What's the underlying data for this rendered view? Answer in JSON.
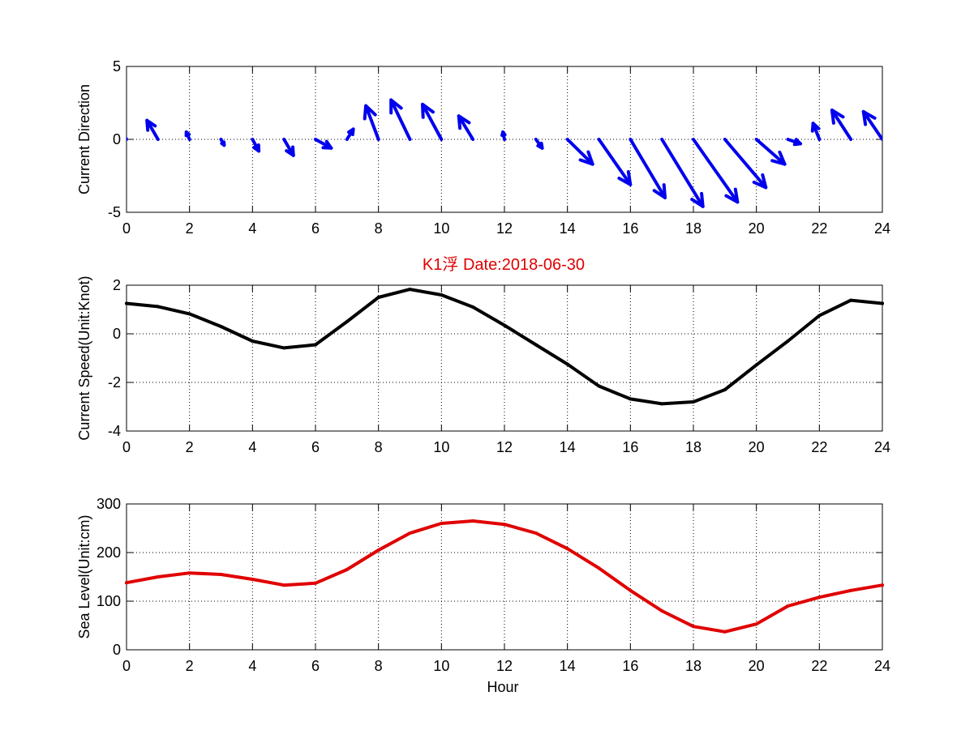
{
  "figure": {
    "title": "K1浮    Date:2018-06-30",
    "title_color": "#e00000",
    "xlabel": "Hour"
  },
  "chart_data": [
    {
      "type": "quiver",
      "ylabel": "Current Direction",
      "xlim": [
        0,
        24
      ],
      "ylim": [
        -5,
        5
      ],
      "xticks": [
        0,
        2,
        4,
        6,
        8,
        10,
        12,
        14,
        16,
        18,
        20,
        22,
        24
      ],
      "yticks": [
        -5,
        0,
        5
      ],
      "grid": true,
      "color": "#0000ee",
      "x": [
        0,
        1,
        2,
        3,
        4,
        5,
        6,
        7,
        8,
        9,
        10,
        11,
        12,
        13,
        14,
        15,
        16,
        17,
        18,
        19,
        20,
        21,
        22,
        23,
        24
      ],
      "u": [
        -0.4,
        -0.35,
        -0.1,
        0.1,
        0.2,
        0.3,
        0.5,
        0.2,
        -0.4,
        -0.6,
        -0.6,
        -0.45,
        -0.05,
        0.2,
        0.8,
        1.0,
        1.1,
        1.3,
        1.4,
        1.3,
        0.9,
        0.4,
        -0.2,
        -0.6,
        -0.6
      ],
      "v": [
        1.7,
        1.3,
        0.5,
        -0.4,
        -0.8,
        -1.1,
        -0.6,
        0.7,
        2.3,
        2.7,
        2.4,
        1.6,
        0.5,
        -0.6,
        -1.7,
        -3.1,
        -4.0,
        -4.6,
        -4.3,
        -3.3,
        -1.7,
        -0.3,
        1.1,
        2.0,
        1.9
      ]
    },
    {
      "type": "line",
      "ylabel": "Current Speed(Unit:Knot)",
      "xlim": [
        0,
        24
      ],
      "ylim": [
        -4,
        2
      ],
      "xticks": [
        0,
        2,
        4,
        6,
        8,
        10,
        12,
        14,
        16,
        18,
        20,
        22,
        24
      ],
      "yticks": [
        -4,
        -2,
        0,
        2
      ],
      "grid": true,
      "color": "#000000",
      "x": [
        0,
        1,
        2,
        3,
        4,
        5,
        6,
        7,
        8,
        9,
        10,
        11,
        12,
        13,
        14,
        15,
        16,
        17,
        18,
        19,
        20,
        21,
        22,
        23,
        24
      ],
      "y": [
        1.25,
        1.12,
        0.82,
        0.3,
        -0.3,
        -0.58,
        -0.45,
        0.5,
        1.5,
        1.83,
        1.6,
        1.1,
        0.35,
        -0.45,
        -1.25,
        -2.15,
        -2.68,
        -2.88,
        -2.8,
        -2.3,
        -1.28,
        -0.3,
        0.75,
        1.38,
        1.25
      ]
    },
    {
      "type": "line",
      "ylabel": "Sea Level(Unit:cm)",
      "xlim": [
        0,
        24
      ],
      "ylim": [
        0,
        300
      ],
      "xticks": [
        0,
        2,
        4,
        6,
        8,
        10,
        12,
        14,
        16,
        18,
        20,
        22,
        24
      ],
      "yticks": [
        0,
        100,
        200,
        300
      ],
      "grid": true,
      "color": "#e00000",
      "x": [
        0,
        1,
        2,
        3,
        4,
        5,
        6,
        7,
        8,
        9,
        10,
        11,
        12,
        13,
        14,
        15,
        16,
        17,
        18,
        19,
        20,
        21,
        22,
        23,
        24
      ],
      "y": [
        138,
        150,
        158,
        155,
        145,
        133,
        137,
        165,
        205,
        240,
        260,
        265,
        258,
        240,
        208,
        168,
        122,
        80,
        48,
        37,
        53,
        90,
        108,
        122,
        133
      ]
    }
  ]
}
